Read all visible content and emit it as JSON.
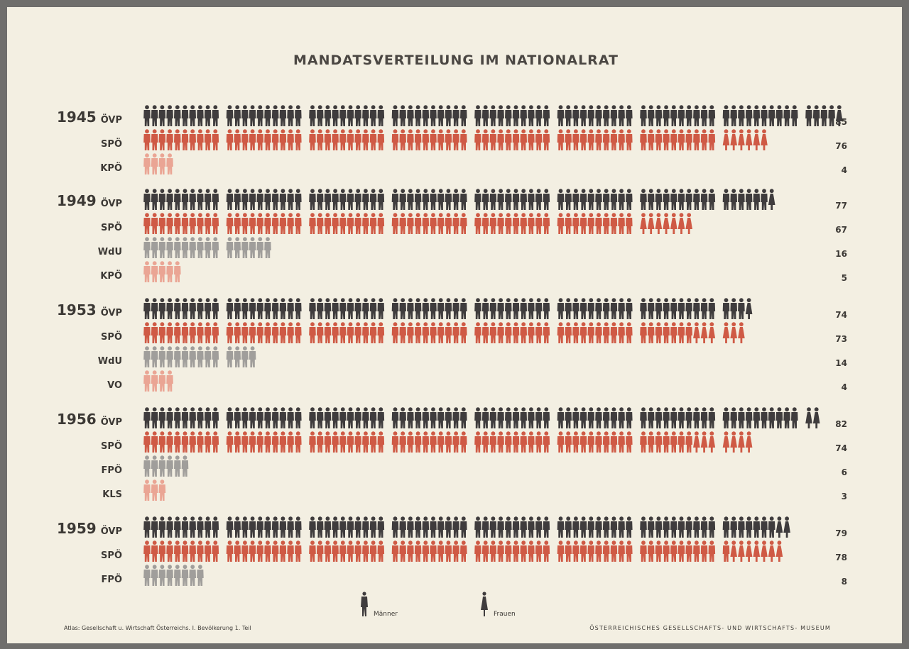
{
  "title": "MANDATSVERTEILUNG IM NATIONALRAT",
  "footer_left": "Atlas: Gesellschaft u. Wirtschaft Österreichs. I. Bevölkerung 1. Teil",
  "footer_right": "ÖSTERREICHISCHES GESELLSCHAFTS- UND WIRTSCHAFTS- MUSEUM",
  "legend": {
    "men": "Männer",
    "women": "Frauen"
  },
  "colors": {
    "ÖVP": "#3f3c3d",
    "SPÖ": "#cf5a45",
    "KPÖ": "#eaa594",
    "WdU": "#a09e9b",
    "VO": "#eaa594",
    "FPÖ": "#a09e9b",
    "KLS": "#eaa594"
  },
  "chart_data": {
    "type": "bar",
    "unit_note": "1 figure = 1 seat; figures grouped in blocks of 10",
    "elections": [
      {
        "year": "1945",
        "parties": [
          {
            "name": "ÖVP",
            "seats": 85,
            "women": 1
          },
          {
            "name": "SPÖ",
            "seats": 76,
            "women": 6
          },
          {
            "name": "KPÖ",
            "seats": 4,
            "women": 0
          }
        ]
      },
      {
        "year": "1949",
        "parties": [
          {
            "name": "ÖVP",
            "seats": 77,
            "women": 1
          },
          {
            "name": "SPÖ",
            "seats": 67,
            "women": 7
          },
          {
            "name": "WdU",
            "seats": 16,
            "women": 0
          },
          {
            "name": "KPÖ",
            "seats": 5,
            "women": 0
          }
        ]
      },
      {
        "year": "1953",
        "parties": [
          {
            "name": "ÖVP",
            "seats": 74,
            "women": 1
          },
          {
            "name": "SPÖ",
            "seats": 73,
            "women": 6
          },
          {
            "name": "WdU",
            "seats": 14,
            "women": 0
          },
          {
            "name": "VO",
            "seats": 4,
            "women": 0
          }
        ]
      },
      {
        "year": "1956",
        "parties": [
          {
            "name": "ÖVP",
            "seats": 82,
            "women": 2
          },
          {
            "name": "SPÖ",
            "seats": 74,
            "women": 7
          },
          {
            "name": "FPÖ",
            "seats": 6,
            "women": 0
          },
          {
            "name": "KLS",
            "seats": 3,
            "women": 0
          }
        ]
      },
      {
        "year": "1959",
        "parties": [
          {
            "name": "ÖVP",
            "seats": 79,
            "women": 2
          },
          {
            "name": "SPÖ",
            "seats": 78,
            "women": 7
          },
          {
            "name": "FPÖ",
            "seats": 8,
            "women": 0
          }
        ]
      }
    ]
  }
}
